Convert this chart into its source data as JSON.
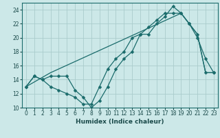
{
  "xlabel": "Humidex (Indice chaleur)",
  "bg_color": "#cce8e8",
  "grid_color": "#aacccc",
  "line_color": "#1a6b6b",
  "line1_x": [
    0,
    1,
    2,
    3,
    4,
    5,
    6,
    7,
    8,
    9,
    10,
    11,
    12,
    13,
    14,
    15,
    16,
    17,
    18,
    19,
    20,
    21,
    22,
    23
  ],
  "line1_y": [
    13,
    14.5,
    14,
    14.5,
    14.5,
    14.5,
    12.5,
    11.5,
    10,
    11,
    13,
    15.5,
    17,
    18,
    20.5,
    20.5,
    22,
    23,
    24.5,
    23.5,
    22,
    20.5,
    15,
    15
  ],
  "line2_x": [
    0,
    1,
    2,
    3,
    4,
    5,
    6,
    7,
    8,
    9,
    10,
    11,
    12,
    13,
    14,
    15,
    16,
    17,
    18,
    19,
    20,
    21,
    22,
    23
  ],
  "line2_y": [
    13,
    14.5,
    14,
    13,
    12.5,
    12,
    11.5,
    10.5,
    10.5,
    13,
    15.5,
    17,
    18,
    20,
    20.5,
    21.5,
    22.5,
    23.5,
    23.5,
    23.5,
    22,
    20,
    17,
    15
  ],
  "line3_x": [
    0,
    3,
    19,
    20,
    21,
    22,
    23
  ],
  "line3_y": [
    13,
    15,
    23.5,
    22,
    20.5,
    15,
    15
  ],
  "xlim": [
    -0.5,
    23.5
  ],
  "ylim": [
    10,
    25
  ],
  "yticks": [
    10,
    12,
    14,
    16,
    18,
    20,
    22,
    24
  ],
  "xticks": [
    0,
    1,
    2,
    3,
    4,
    5,
    6,
    7,
    8,
    9,
    10,
    11,
    12,
    13,
    14,
    15,
    16,
    17,
    18,
    19,
    20,
    21,
    22,
    23
  ],
  "xlabel_fontsize": 6.5,
  "tick_labelsize": 5.5,
  "marker_size": 2.5,
  "line_width": 0.9
}
